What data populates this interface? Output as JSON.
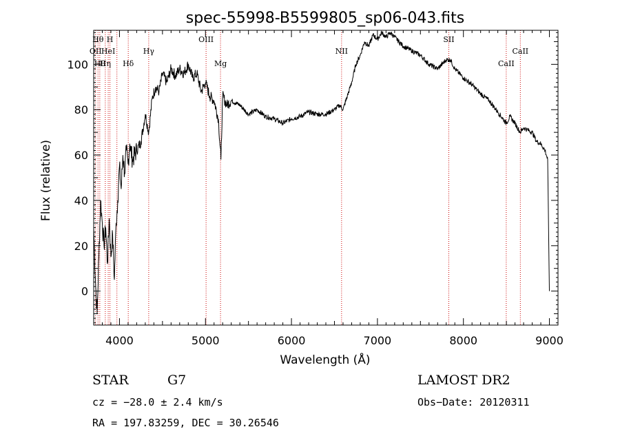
{
  "chart_data": {
    "type": "line",
    "title": "spec-55998-B5599805_sp06-043.fits",
    "xlabel": "Wavelength (Å)",
    "ylabel": "Flux (relative)",
    "xlim": [
      3700,
      9100
    ],
    "ylim": [
      -15,
      115
    ],
    "x_ticks": [
      4000,
      5000,
      6000,
      7000,
      8000,
      9000
    ],
    "y_ticks": [
      0,
      20,
      40,
      60,
      80,
      100
    ],
    "grid": false,
    "series": [
      {
        "x": [
          3700,
          3720,
          3740,
          3760,
          3780,
          3800,
          3820,
          3840,
          3860,
          3880,
          3900,
          3920,
          3940,
          3960,
          3980,
          4000,
          4020,
          4040,
          4060,
          4080,
          4100,
          4120,
          4150,
          4200,
          4250,
          4300,
          4340,
          4380,
          4420,
          4460,
          4500,
          4550,
          4600,
          4650,
          4700,
          4750,
          4800,
          4850,
          4900,
          4950,
          5000,
          5050,
          5100,
          5150,
          5180,
          5200,
          5250,
          5300,
          5400,
          5500,
          5600,
          5700,
          5800,
          5900,
          6000,
          6100,
          6200,
          6300,
          6400,
          6500,
          6560,
          6600,
          6650,
          6700,
          6750,
          6800,
          6850,
          6900,
          6950,
          7000,
          7050,
          7100,
          7150,
          7200,
          7300,
          7400,
          7500,
          7600,
          7700,
          7800,
          7850,
          7900,
          8000,
          8100,
          8200,
          8300,
          8400,
          8500,
          8540,
          8600,
          8660,
          8700,
          8800,
          8850,
          8900,
          8950,
          8980,
          9000
        ],
        "values": [
          28,
          5,
          -10,
          15,
          40,
          30,
          20,
          28,
          12,
          32,
          15,
          25,
          5,
          30,
          40,
          55,
          45,
          60,
          52,
          62,
          56,
          65,
          58,
          62,
          66,
          78,
          70,
          85,
          90,
          88,
          96,
          92,
          98,
          95,
          98,
          96,
          100,
          94,
          96,
          88,
          92,
          86,
          84,
          76,
          58,
          86,
          82,
          84,
          82,
          78,
          80,
          77,
          76,
          74,
          76,
          77,
          79,
          78,
          78,
          80,
          82,
          80,
          86,
          92,
          100,
          104,
          110,
          108,
          113,
          111,
          114,
          112,
          114,
          112,
          108,
          106,
          104,
          100,
          98,
          102,
          102,
          98,
          94,
          91,
          87,
          84,
          79,
          74,
          77,
          74,
          70,
          72,
          70,
          66,
          65,
          62,
          58,
          0
        ]
      }
    ],
    "lines": [
      {
        "x": 3722,
        "label": "OII",
        "row": 2
      },
      {
        "x": 3750,
        "label": "Hθ",
        "row": 1
      },
      {
        "x": 3771,
        "label": "Hθ",
        "row": 3
      },
      {
        "x": 3835,
        "label": "Hη",
        "row": 3
      },
      {
        "x": 3869,
        "label": "HeI",
        "row": 2
      },
      {
        "x": 3889,
        "label": "H",
        "row": 1
      },
      {
        "x": 3970,
        "label": "",
        "row": 1
      },
      {
        "x": 4102,
        "label": "Hδ",
        "row": 3
      },
      {
        "x": 4340,
        "label": "Hγ",
        "row": 2
      },
      {
        "x": 5007,
        "label": "OIII",
        "row": 1
      },
      {
        "x": 5175,
        "label": "Mg",
        "row": 3
      },
      {
        "x": 6583,
        "label": "NII",
        "row": 2
      },
      {
        "x": 7830,
        "label": "SII",
        "row": 1
      },
      {
        "x": 8498,
        "label": "CaII",
        "row": 3
      },
      {
        "x": 8662,
        "label": "CaII",
        "row": 2
      }
    ]
  },
  "info": {
    "object_type": "STAR",
    "subclass": "G7",
    "cz": "cz = −28.0 ± 2.4 km/s",
    "radec": "RA = 197.83259, DEC =  30.26546",
    "survey": "LAMOST DR2",
    "obs_date": "Obs−Date: 20120311"
  },
  "colors": {
    "spectrum": "#000000",
    "line_markers": "#cc0000"
  }
}
